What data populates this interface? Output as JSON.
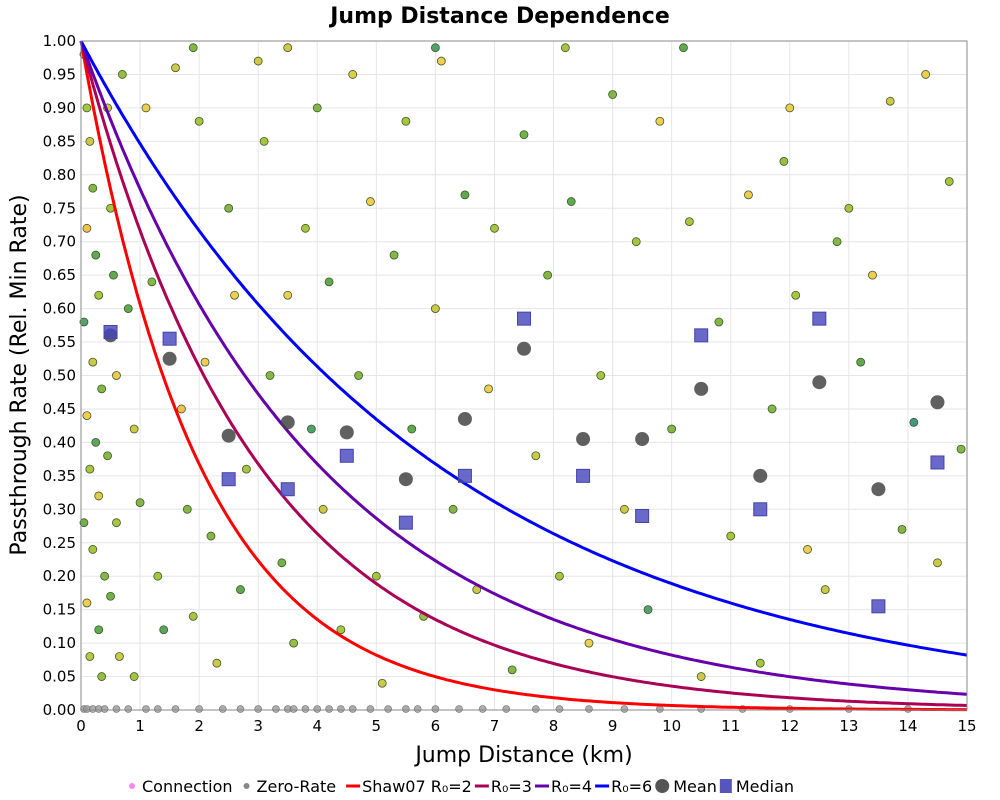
{
  "chart_data": {
    "type": "scatter",
    "title": "Jump Distance Dependence",
    "xlabel": "Jump Distance (km)",
    "ylabel": "Passthrough Rate (Rel. Min Rate)",
    "xlim": [
      0,
      15
    ],
    "ylim": [
      0,
      1
    ],
    "xticks": [
      "0",
      "1",
      "2",
      "3",
      "4",
      "5",
      "6",
      "7",
      "8",
      "9",
      "10",
      "11",
      "12",
      "13",
      "14",
      "15"
    ],
    "yticks": [
      "0.00",
      "0.05",
      "0.10",
      "0.15",
      "0.20",
      "0.25",
      "0.30",
      "0.35",
      "0.40",
      "0.45",
      "0.50",
      "0.55",
      "0.60",
      "0.65",
      "0.70",
      "0.75",
      "0.80",
      "0.85",
      "0.90",
      "0.95",
      "1.00"
    ],
    "grid": true,
    "legend_position": "bottom",
    "legend": [
      {
        "label": "Connection",
        "type": "dot",
        "color": "#ff88ee"
      },
      {
        "label": "Zero-Rate",
        "type": "dot",
        "color": "#888888"
      },
      {
        "label": "Shaw07 R₀=2",
        "type": "line",
        "color": "#ff0000"
      },
      {
        "label": "R₀=3",
        "type": "line",
        "color": "#aa0055"
      },
      {
        "label": "R₀=4",
        "type": "line",
        "color": "#6600aa"
      },
      {
        "label": "R₀=6",
        "type": "line",
        "color": "#0000ff"
      },
      {
        "label": "Mean",
        "type": "circle",
        "color": "#555555"
      },
      {
        "label": "Median",
        "type": "square",
        "color": "#5555bb"
      }
    ],
    "curves": [
      {
        "name": "Shaw07 R₀=2",
        "r0": 2,
        "color": "#ff0000"
      },
      {
        "name": "R₀=3",
        "r0": 3,
        "color": "#aa0055"
      },
      {
        "name": "R₀=4",
        "r0": 4,
        "color": "#6600aa"
      },
      {
        "name": "R₀=6",
        "r0": 6,
        "color": "#0000ff"
      }
    ],
    "mean": [
      [
        0.5,
        0.56
      ],
      [
        1.5,
        0.525
      ],
      [
        2.5,
        0.41
      ],
      [
        3.5,
        0.43
      ],
      [
        4.5,
        0.415
      ],
      [
        5.5,
        0.345
      ],
      [
        6.5,
        0.435
      ],
      [
        7.5,
        0.54
      ],
      [
        8.5,
        0.405
      ],
      [
        9.5,
        0.405
      ],
      [
        10.5,
        0.48
      ],
      [
        11.5,
        0.35
      ],
      [
        12.5,
        0.49
      ],
      [
        13.5,
        0.33
      ],
      [
        14.5,
        0.46
      ]
    ],
    "median": [
      [
        0.5,
        0.565
      ],
      [
        1.5,
        0.555
      ],
      [
        2.5,
        0.345
      ],
      [
        3.5,
        0.33
      ],
      [
        4.5,
        0.38
      ],
      [
        5.5,
        0.28
      ],
      [
        6.5,
        0.35
      ],
      [
        7.5,
        0.585
      ],
      [
        8.5,
        0.35
      ],
      [
        9.5,
        0.29
      ],
      [
        10.5,
        0.56
      ],
      [
        11.5,
        0.3
      ],
      [
        12.5,
        0.585
      ],
      [
        13.5,
        0.155
      ],
      [
        14.5,
        0.37
      ]
    ],
    "connections": [
      [
        0.05,
        0.98,
        0.8
      ],
      [
        0.1,
        0.9,
        0.6
      ],
      [
        0.15,
        0.85,
        0.7
      ],
      [
        0.2,
        0.78,
        0.5
      ],
      [
        0.1,
        0.72,
        0.9
      ],
      [
        0.25,
        0.68,
        0.4
      ],
      [
        0.3,
        0.62,
        0.6
      ],
      [
        0.05,
        0.58,
        0.3
      ],
      [
        0.2,
        0.52,
        0.7
      ],
      [
        0.35,
        0.48,
        0.5
      ],
      [
        0.1,
        0.44,
        0.8
      ],
      [
        0.25,
        0.4,
        0.35
      ],
      [
        0.15,
        0.36,
        0.6
      ],
      [
        0.3,
        0.32,
        0.75
      ],
      [
        0.05,
        0.28,
        0.45
      ],
      [
        0.2,
        0.24,
        0.6
      ],
      [
        0.4,
        0.2,
        0.5
      ],
      [
        0.1,
        0.16,
        0.8
      ],
      [
        0.3,
        0.12,
        0.4
      ],
      [
        0.15,
        0.08,
        0.65
      ],
      [
        0.35,
        0.05,
        0.55
      ],
      [
        0.45,
        0.9,
        0.7
      ],
      [
        0.5,
        0.75,
        0.6
      ],
      [
        0.55,
        0.65,
        0.4
      ],
      [
        0.6,
        0.5,
        0.85
      ],
      [
        0.45,
        0.38,
        0.5
      ],
      [
        0.6,
        0.28,
        0.6
      ],
      [
        0.5,
        0.17,
        0.45
      ],
      [
        0.65,
        0.08,
        0.7
      ],
      [
        0.7,
        0.95,
        0.55
      ],
      [
        0.8,
        0.6,
        0.4
      ],
      [
        0.9,
        0.42,
        0.7
      ],
      [
        1.0,
        0.31,
        0.5
      ],
      [
        1.1,
        0.9,
        0.8
      ],
      [
        1.2,
        0.64,
        0.5
      ],
      [
        1.3,
        0.2,
        0.6
      ],
      [
        1.4,
        0.12,
        0.35
      ],
      [
        0.9,
        0.05,
        0.6
      ],
      [
        1.6,
        0.96,
        0.7
      ],
      [
        1.7,
        0.45,
        0.9
      ],
      [
        1.8,
        0.3,
        0.5
      ],
      [
        1.9,
        0.14,
        0.6
      ],
      [
        2.0,
        0.88,
        0.6
      ],
      [
        2.1,
        0.52,
        0.8
      ],
      [
        2.2,
        0.26,
        0.5
      ],
      [
        2.3,
        0.07,
        0.7
      ],
      [
        2.5,
        0.75,
        0.5
      ],
      [
        2.6,
        0.62,
        0.8
      ],
      [
        2.7,
        0.18,
        0.4
      ],
      [
        2.8,
        0.36,
        0.6
      ],
      [
        3.0,
        0.97,
        0.7
      ],
      [
        3.1,
        0.85,
        0.6
      ],
      [
        3.2,
        0.5,
        0.5
      ],
      [
        3.4,
        0.22,
        0.45
      ],
      [
        3.5,
        0.62,
        0.8
      ],
      [
        3.6,
        0.1,
        0.55
      ],
      [
        3.8,
        0.72,
        0.6
      ],
      [
        3.9,
        0.42,
        0.3
      ],
      [
        4.0,
        0.9,
        0.5
      ],
      [
        4.1,
        0.3,
        0.7
      ],
      [
        4.2,
        0.64,
        0.4
      ],
      [
        4.4,
        0.12,
        0.6
      ],
      [
        4.6,
        0.95,
        0.75
      ],
      [
        4.7,
        0.5,
        0.5
      ],
      [
        4.9,
        0.76,
        0.8
      ],
      [
        5.0,
        0.2,
        0.6
      ],
      [
        5.1,
        0.04,
        0.7
      ],
      [
        5.3,
        0.68,
        0.5
      ],
      [
        5.5,
        0.88,
        0.6
      ],
      [
        5.6,
        0.42,
        0.4
      ],
      [
        5.8,
        0.14,
        0.55
      ],
      [
        6.0,
        0.6,
        0.7
      ],
      [
        6.1,
        0.97,
        0.8
      ],
      [
        6.3,
        0.3,
        0.5
      ],
      [
        6.5,
        0.77,
        0.4
      ],
      [
        6.7,
        0.18,
        0.7
      ],
      [
        6.9,
        0.48,
        0.8
      ],
      [
        7.0,
        0.72,
        0.6
      ],
      [
        7.3,
        0.06,
        0.5
      ],
      [
        7.5,
        0.86,
        0.45
      ],
      [
        7.7,
        0.38,
        0.7
      ],
      [
        7.9,
        0.65,
        0.5
      ],
      [
        8.1,
        0.2,
        0.6
      ],
      [
        8.3,
        0.76,
        0.4
      ],
      [
        8.6,
        0.1,
        0.8
      ],
      [
        8.8,
        0.5,
        0.6
      ],
      [
        9.0,
        0.92,
        0.5
      ],
      [
        9.2,
        0.3,
        0.7
      ],
      [
        9.4,
        0.7,
        0.6
      ],
      [
        9.6,
        0.15,
        0.3
      ],
      [
        9.8,
        0.88,
        0.8
      ],
      [
        10.0,
        0.42,
        0.5
      ],
      [
        10.3,
        0.73,
        0.6
      ],
      [
        10.5,
        0.05,
        0.7
      ],
      [
        10.8,
        0.58,
        0.5
      ],
      [
        11.0,
        0.26,
        0.6
      ],
      [
        11.3,
        0.77,
        0.8
      ],
      [
        11.5,
        0.07,
        0.6
      ],
      [
        11.7,
        0.45,
        0.5
      ],
      [
        11.9,
        0.82,
        0.55
      ],
      [
        12.1,
        0.62,
        0.6
      ],
      [
        12.3,
        0.24,
        0.8
      ],
      [
        12.6,
        0.18,
        0.7
      ],
      [
        12.8,
        0.7,
        0.5
      ],
      [
        13.0,
        0.75,
        0.6
      ],
      [
        13.2,
        0.52,
        0.4
      ],
      [
        13.4,
        0.65,
        0.8
      ],
      [
        13.7,
        0.91,
        0.7
      ],
      [
        13.9,
        0.27,
        0.5
      ],
      [
        14.1,
        0.43,
        0.2
      ],
      [
        14.3,
        0.95,
        0.8
      ],
      [
        14.5,
        0.22,
        0.7
      ],
      [
        14.7,
        0.79,
        0.6
      ],
      [
        14.9,
        0.39,
        0.5
      ],
      [
        12.0,
        0.9,
        0.8
      ],
      [
        10.2,
        0.99,
        0.4
      ],
      [
        8.2,
        0.99,
        0.6
      ],
      [
        6.0,
        0.99,
        0.3
      ],
      [
        3.5,
        0.99,
        0.7
      ],
      [
        1.9,
        0.99,
        0.5
      ]
    ],
    "zero_rate_x": [
      0.05,
      0.1,
      0.2,
      0.3,
      0.4,
      0.6,
      0.8,
      1.1,
      1.3,
      1.6,
      2.0,
      2.4,
      2.7,
      3.0,
      3.3,
      3.5,
      3.6,
      3.8,
      4.0,
      4.2,
      4.4,
      4.6,
      4.9,
      5.2,
      5.5,
      5.7,
      6.0,
      6.4,
      6.8,
      7.2,
      7.7,
      8.1,
      8.6,
      9.2,
      9.8,
      10.5,
      11.2,
      12.0,
      13.0,
      14.0
    ]
  }
}
